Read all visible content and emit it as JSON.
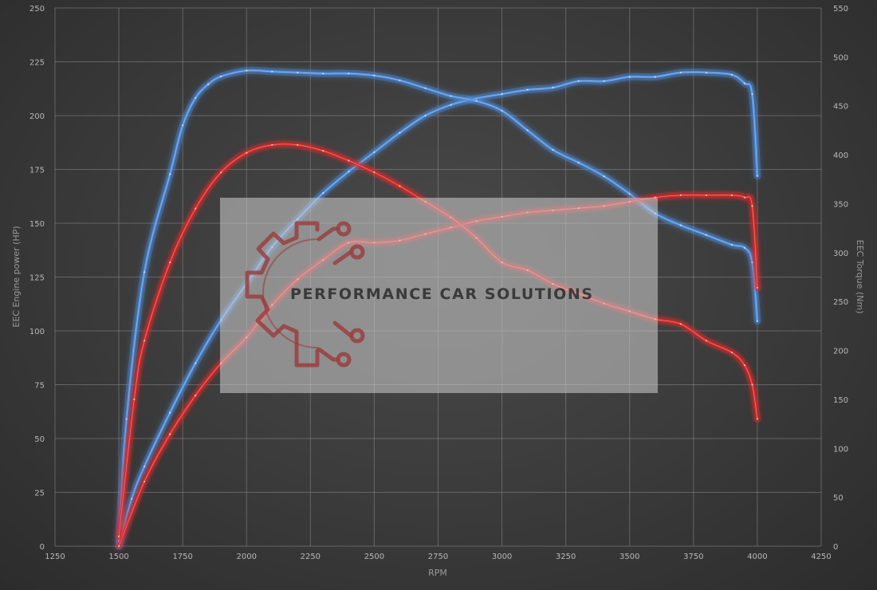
{
  "chart_data": {
    "type": "line",
    "title": "",
    "xlabel": "RPM",
    "ylabel_left": "EEC Engine power (HP)",
    "ylabel_right": "EEC Torque (Nm)",
    "xlim": [
      1250,
      4250
    ],
    "ylim_left": [
      0,
      250
    ],
    "ylim_right": [
      0,
      550
    ],
    "x_ticks": [
      1250,
      1500,
      1750,
      2000,
      2250,
      2500,
      2750,
      3000,
      3250,
      3500,
      3750,
      4000,
      4250
    ],
    "y_left_ticks": [
      0,
      25,
      50,
      75,
      100,
      125,
      150,
      175,
      200,
      225,
      250
    ],
    "y_right_ticks": [
      0,
      50,
      100,
      150,
      200,
      250,
      300,
      350,
      400,
      450,
      500,
      550
    ],
    "grid": true,
    "legend": "none",
    "colors": {
      "tuned": "#4f8fe0",
      "stock": "#e02828"
    },
    "series": [
      {
        "key": "tuned_power",
        "axis": "left",
        "color": "#4f8fe0",
        "x": [
          1500,
          1550,
          1600,
          1700,
          1800,
          1900,
          2000,
          2100,
          2200,
          2300,
          2400,
          2500,
          2600,
          2700,
          2800,
          2900,
          3000,
          3100,
          3200,
          3300,
          3400,
          3500,
          3600,
          3700,
          3800,
          3900,
          3950,
          3980,
          4000
        ],
        "y": [
          0,
          22,
          37,
          62,
          85,
          105,
          122,
          139,
          152,
          164,
          174,
          183,
          192,
          200,
          205,
          208,
          210,
          212,
          213,
          216,
          216,
          218,
          218,
          220,
          220,
          219,
          215,
          210,
          172
        ]
      },
      {
        "key": "tuned_torque",
        "axis": "right",
        "color": "#4f8fe0",
        "x": [
          1500,
          1530,
          1600,
          1700,
          1750,
          1800,
          1850,
          1900,
          2000,
          2100,
          2200,
          2300,
          2400,
          2500,
          2600,
          2700,
          2800,
          2900,
          3000,
          3100,
          3200,
          3300,
          3400,
          3500,
          3600,
          3700,
          3800,
          3900,
          3950,
          3980,
          4000
        ],
        "y": [
          5,
          130,
          280,
          380,
          430,
          458,
          472,
          480,
          486,
          485,
          484,
          483,
          483,
          481,
          476,
          468,
          460,
          455,
          445,
          425,
          405,
          392,
          378,
          360,
          340,
          328,
          318,
          308,
          305,
          290,
          230
        ]
      },
      {
        "key": "stock_power",
        "axis": "left",
        "color": "#e02828",
        "x": [
          1500,
          1600,
          1700,
          1800,
          1900,
          2000,
          2100,
          2200,
          2300,
          2400,
          2500,
          2600,
          2700,
          2800,
          2900,
          3000,
          3100,
          3200,
          3300,
          3400,
          3500,
          3600,
          3700,
          3800,
          3900,
          3950,
          3980,
          4000
        ],
        "y": [
          0,
          30,
          52,
          70,
          85,
          97,
          112,
          124,
          133,
          141,
          141,
          142,
          145,
          148,
          151,
          153,
          155,
          156,
          157,
          158,
          160,
          162,
          163,
          163,
          163,
          162,
          158,
          120
        ]
      },
      {
        "key": "stock_torque",
        "axis": "right",
        "color": "#e02828",
        "x": [
          1500,
          1560,
          1600,
          1700,
          1800,
          1900,
          2000,
          2100,
          2200,
          2300,
          2400,
          2500,
          2600,
          2700,
          2800,
          2900,
          3000,
          3100,
          3200,
          3300,
          3400,
          3500,
          3600,
          3700,
          3800,
          3900,
          3950,
          3980,
          4000
        ],
        "y": [
          10,
          150,
          210,
          290,
          345,
          382,
          402,
          410,
          410,
          404,
          394,
          382,
          368,
          352,
          336,
          315,
          290,
          282,
          268,
          258,
          248,
          240,
          232,
          227,
          210,
          198,
          185,
          165,
          130
        ]
      }
    ]
  },
  "watermark": {
    "text": "PERFORMANCE CAR SOLUTIONS",
    "icon": "gear-circuit-logo-icon",
    "colors": {
      "panel": "#c8c8c8",
      "logo": "#9a4040",
      "text": "#3a3a3a"
    }
  }
}
